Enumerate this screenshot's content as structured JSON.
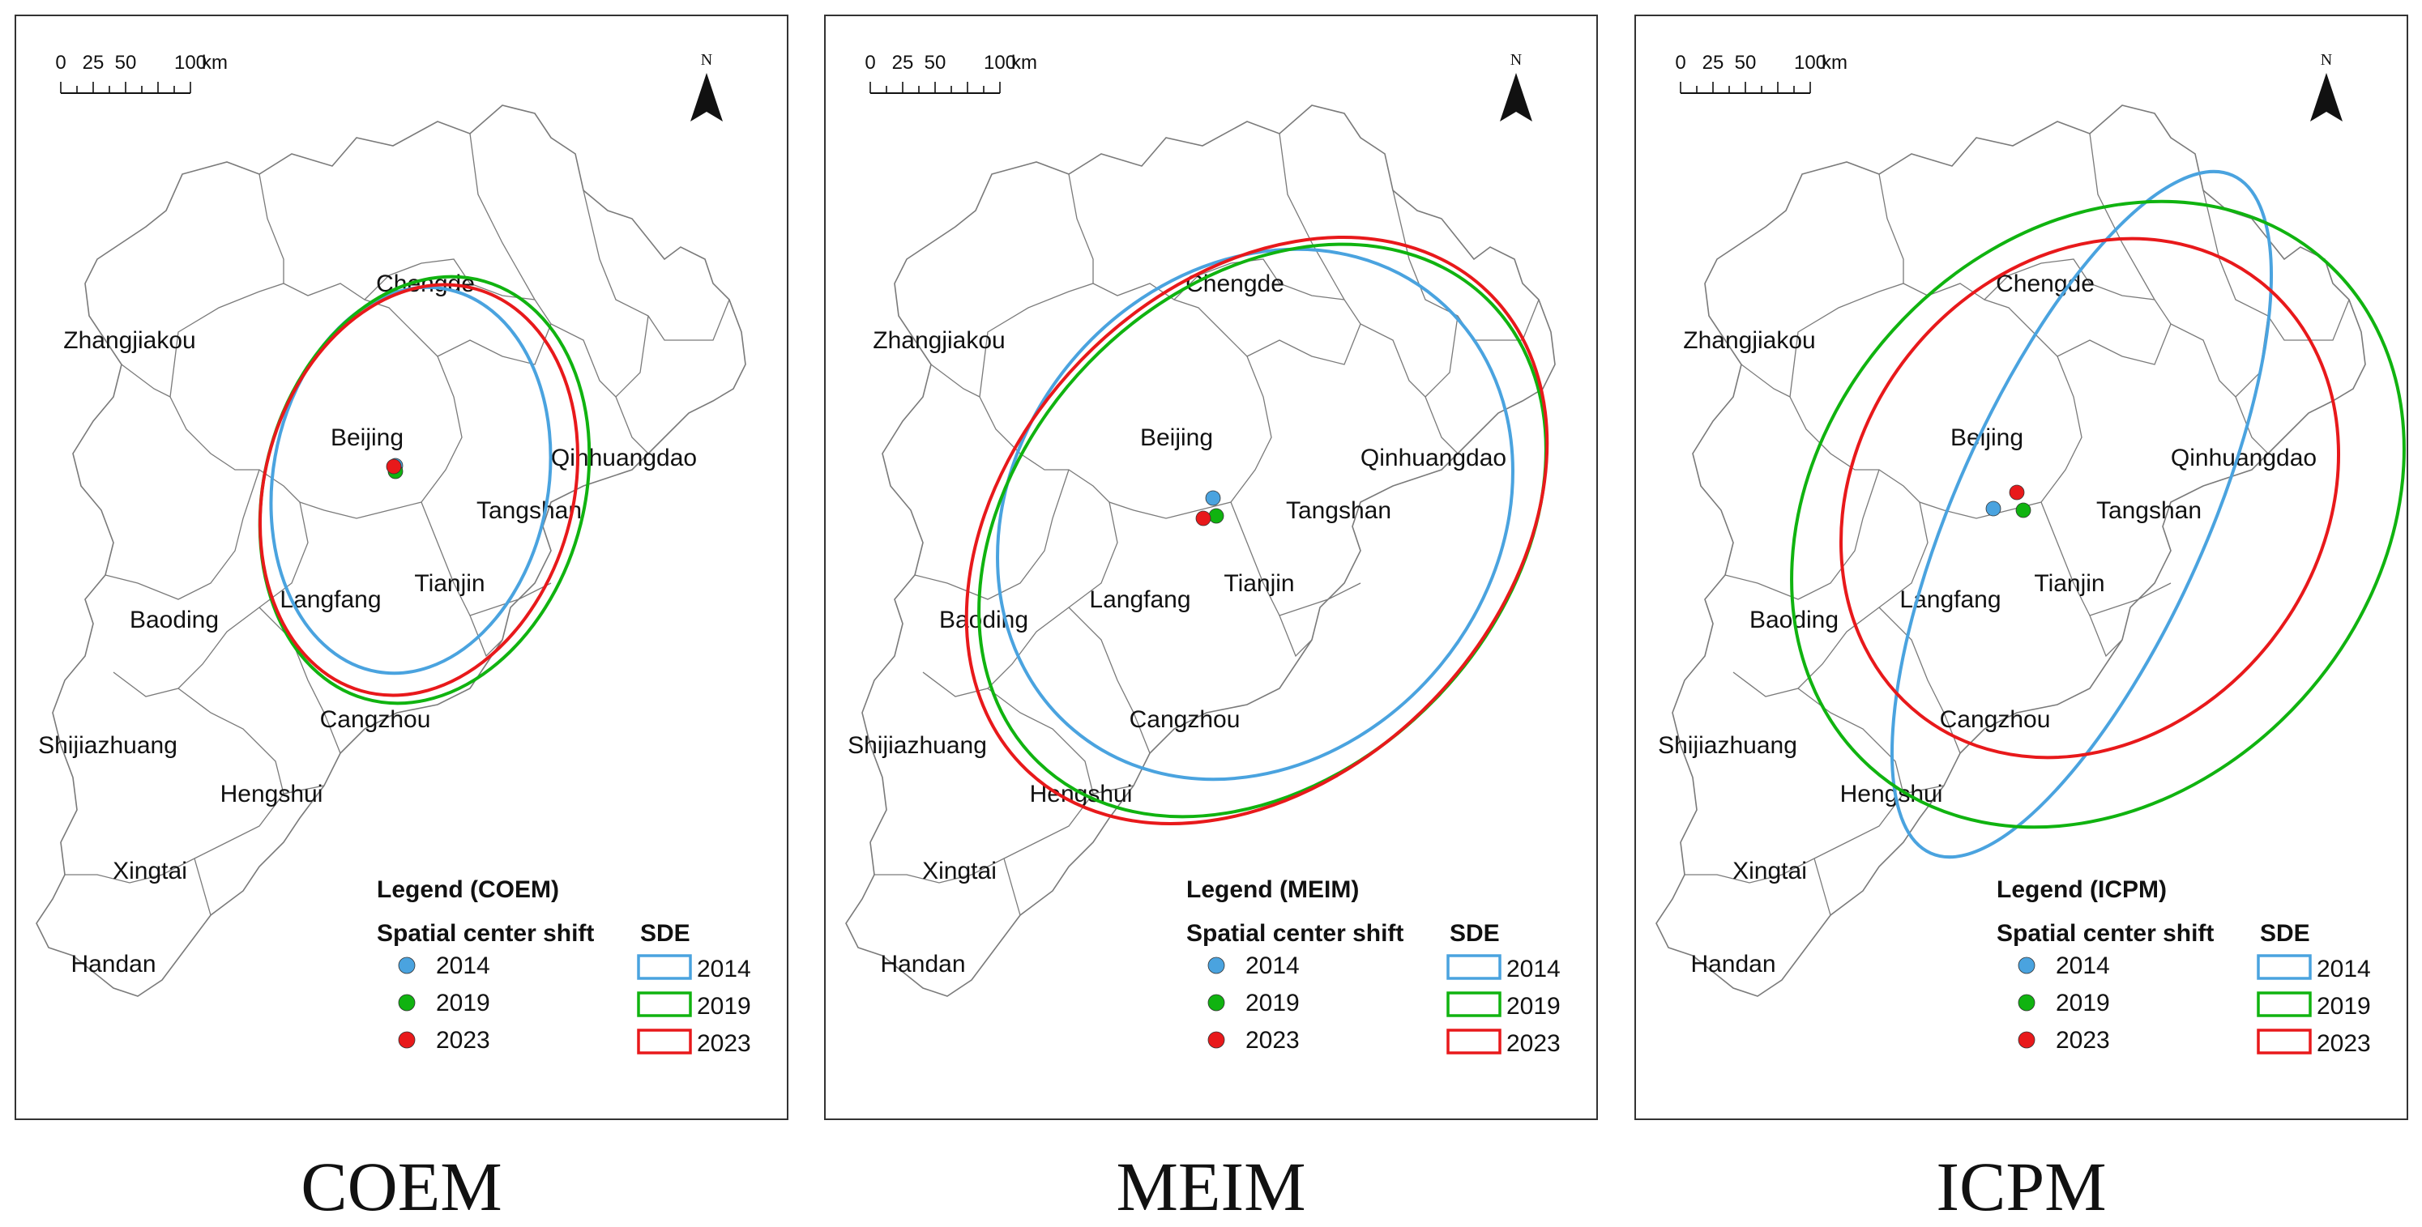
{
  "colors": {
    "y2014": "#4aa3df",
    "y2019": "#10b310",
    "y2023": "#e8191b",
    "boundary": "#7a7a7a"
  },
  "scale_bar": {
    "ticks": [
      "0",
      "25",
      "50",
      "100"
    ],
    "unit": "km"
  },
  "north_label": "N",
  "cities": [
    "Zhangjiakou",
    "Chengde",
    "Beijing",
    "Qinhuangdao",
    "Tangshan",
    "Tianjin",
    "Langfang",
    "Baoding",
    "Cangzhou",
    "Shijiazhuang",
    "Hengshui",
    "Xingtai",
    "Handan"
  ],
  "legend": {
    "center_shift_label": "Spatial center shift",
    "sde_label": "SDE",
    "years": [
      "2014",
      "2019",
      "2023"
    ]
  },
  "panels": [
    {
      "id": "coem",
      "caption": "COEM",
      "legend_title": "Legend (COEM)"
    },
    {
      "id": "meim",
      "caption": "MEIM",
      "legend_title": "Legend (MEIM)"
    },
    {
      "id": "icpm",
      "caption": "ICPM",
      "legend_title": "Legend (ICPM)"
    }
  ]
}
